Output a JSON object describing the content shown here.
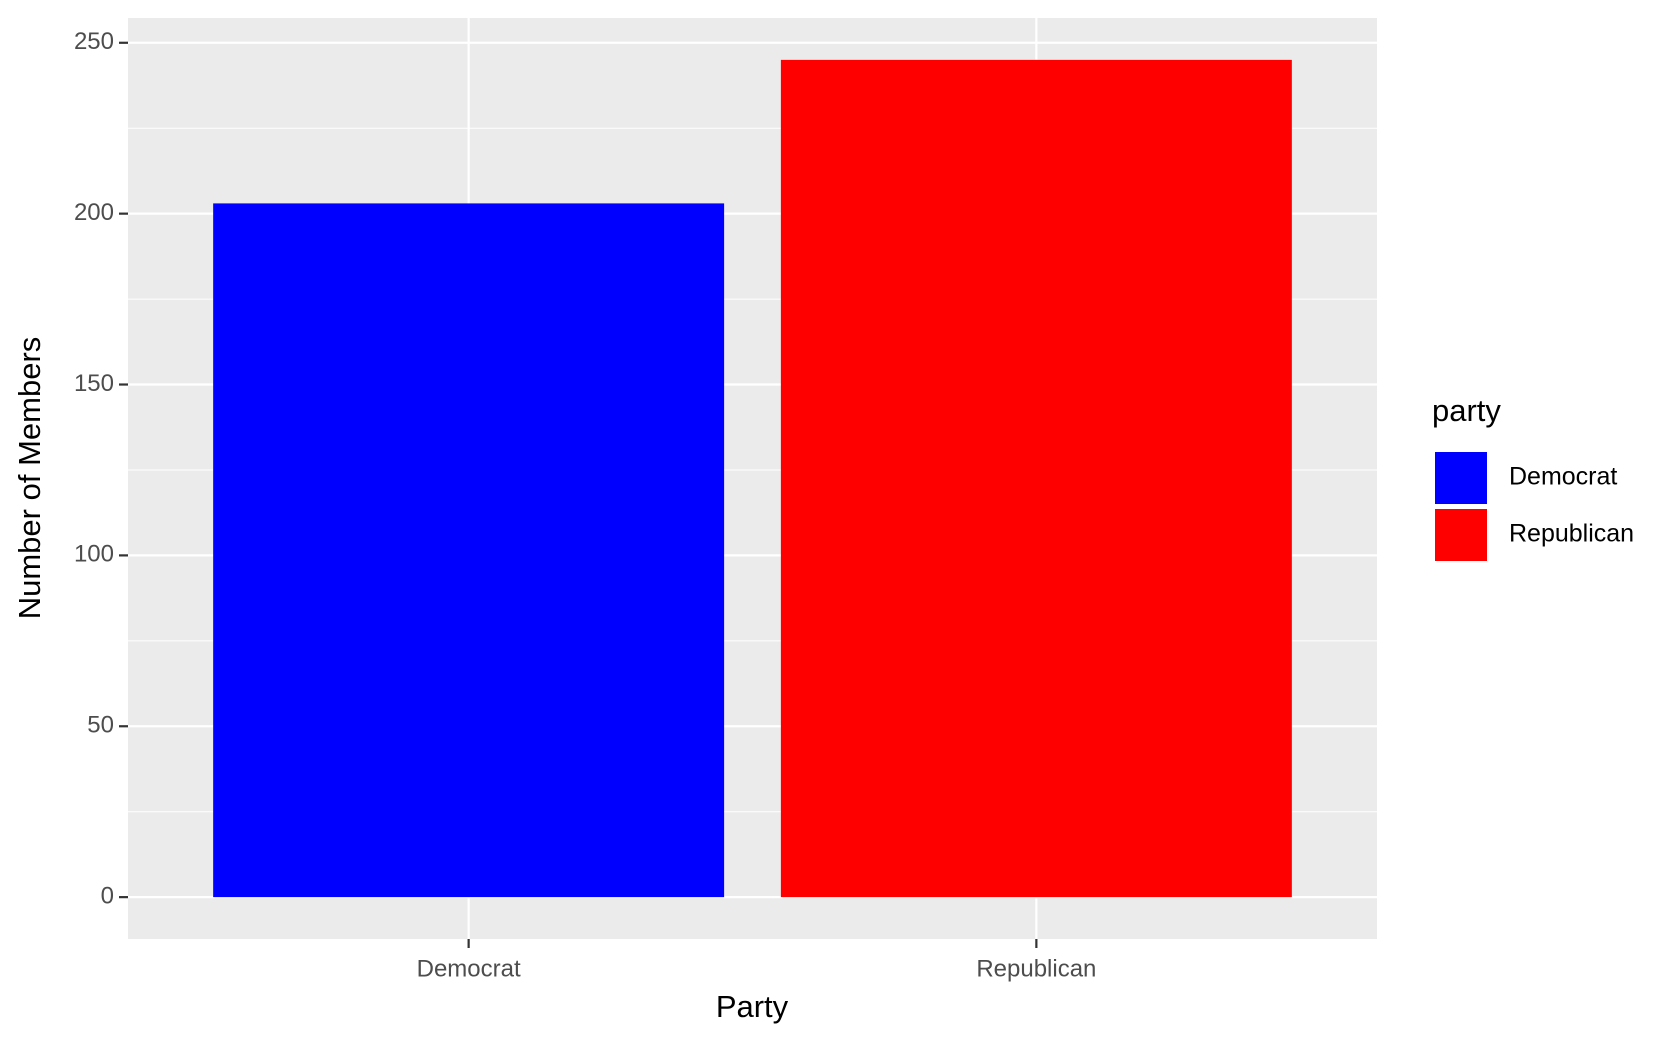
{
  "chart_data": {
    "type": "bar",
    "x_label": "Party",
    "y_label": "Number of Members",
    "categories": [
      "Democrat",
      "Republican"
    ],
    "values": [
      203,
      245
    ],
    "colors": [
      "#0000ff",
      "#ff0000"
    ],
    "legend_title": "party",
    "ylim": [
      -12.25,
      257.25
    ],
    "yticks": [
      0,
      50,
      100,
      150,
      200,
      250
    ],
    "grid": true
  }
}
